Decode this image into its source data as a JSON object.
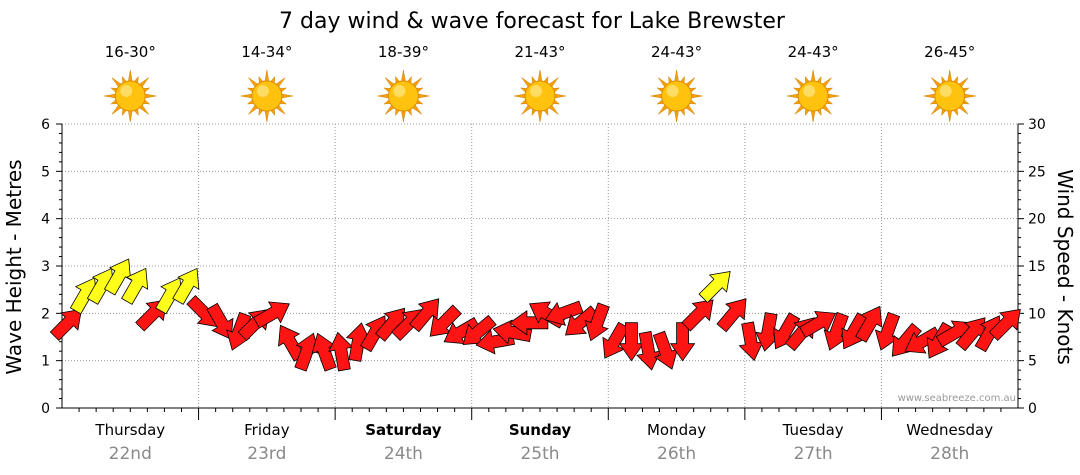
{
  "chart_data": {
    "type": "line",
    "title": "7 day wind & wave forecast for Lake Brewster",
    "ylabel_left": "Wave Height - Metres",
    "ylabel_right": "Wind Speed - Knots",
    "left_axis": {
      "min": 0,
      "max": 6,
      "ticks": [
        0,
        1,
        2,
        3,
        4,
        5,
        6
      ]
    },
    "right_axis": {
      "min": 0,
      "max": 30,
      "ticks": [
        0,
        5,
        10,
        15,
        20,
        25,
        30
      ]
    },
    "grid": true,
    "watermark": "www.seabreeze.com.au",
    "days": [
      {
        "name": "Thursday",
        "date": "22nd",
        "temp": "16-30°",
        "weather_icon": "sun-icon",
        "bold": false
      },
      {
        "name": "Friday",
        "date": "23rd",
        "temp": "14-34°",
        "weather_icon": "sun-icon",
        "bold": false
      },
      {
        "name": "Saturday",
        "date": "24th",
        "temp": "18-39°",
        "weather_icon": "sun-icon",
        "bold": true
      },
      {
        "name": "Sunday",
        "date": "25th",
        "temp": "21-43°",
        "weather_icon": "sun-icon",
        "bold": true
      },
      {
        "name": "Monday",
        "date": "26th",
        "temp": "24-43°",
        "weather_icon": "sun-icon",
        "bold": false
      },
      {
        "name": "Tuesday",
        "date": "27th",
        "temp": "24-43°",
        "weather_icon": "sun-icon",
        "bold": false
      },
      {
        "name": "Wednesday",
        "date": "28th",
        "temp": "26-45°",
        "weather_icon": "sun-icon",
        "bold": false
      }
    ],
    "series": [
      {
        "type": "wind-arrows",
        "color_key": "yellow = 12+ knots, red = under 12 knots",
        "time_hours": [
          0,
          3,
          6,
          9,
          12,
          15,
          18,
          21,
          24,
          27,
          30,
          33,
          36,
          39,
          42,
          45,
          48,
          51,
          54,
          57,
          60,
          63,
          66,
          69,
          72,
          75,
          78,
          81,
          84,
          87,
          90,
          93,
          96,
          99,
          102,
          105,
          108,
          111,
          114,
          117,
          120,
          123,
          126,
          129,
          132,
          135,
          138,
          141,
          144,
          147,
          150,
          153,
          156,
          159,
          162,
          165
        ],
        "wind_knots": [
          9,
          12,
          13,
          14,
          13,
          10,
          12,
          13,
          10,
          9,
          8,
          9,
          10,
          7,
          6,
          6,
          6,
          7,
          8,
          9,
          9,
          10,
          9,
          8,
          8,
          7,
          8,
          9,
          10,
          10,
          9,
          9,
          7,
          7,
          6,
          6,
          7,
          10,
          13,
          10,
          7,
          8,
          8,
          8,
          9,
          8,
          8,
          9,
          8,
          7,
          7,
          7,
          8,
          8,
          8,
          9
        ],
        "direction_deg": [
          45,
          30,
          30,
          30,
          30,
          45,
          30,
          30,
          135,
          150,
          200,
          45,
          60,
          330,
          20,
          340,
          350,
          10,
          30,
          40,
          45,
          40,
          225,
          240,
          230,
          260,
          280,
          270,
          300,
          250,
          230,
          200,
          210,
          180,
          170,
          160,
          180,
          45,
          45,
          40,
          170,
          190,
          210,
          40,
          60,
          200,
          210,
          30,
          200,
          220,
          240,
          210,
          60,
          40,
          30,
          45
        ]
      }
    ]
  }
}
